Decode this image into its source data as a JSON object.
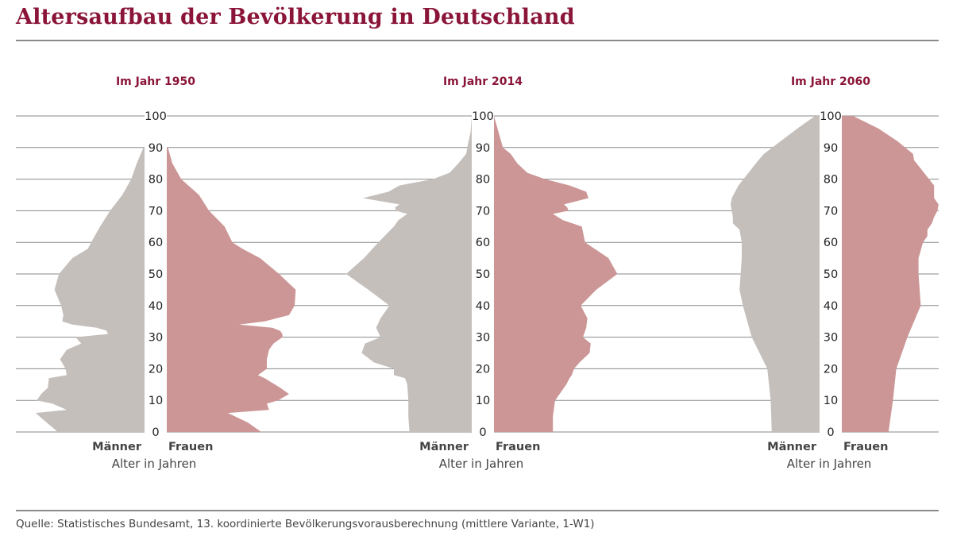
{
  "title": "Altersaufbau der Bevölkerung in Deutschland",
  "source": "Quelle: Statistisches Bundesamt, 13. koordinierte Bevölkerungsvorausberechnung (mittlere Variante, 1-W1)",
  "colors": {
    "male": "#c5bfbc",
    "female": "#cc9696",
    "accent": "#8a1538",
    "grid": "#8a8a8a"
  },
  "chart_data": [
    {
      "type": "area",
      "title": "Im Jahr 1950",
      "xlabel": "Alter in Jahren",
      "yticks": [
        "0",
        "10",
        "20",
        "30",
        "40",
        "50",
        "60",
        "70",
        "80",
        "90",
        "100"
      ],
      "ylim": [
        0,
        100
      ],
      "series_labels": [
        "Männer",
        "Frauen"
      ],
      "age": [
        0,
        3,
        6,
        7,
        9,
        10,
        12,
        14,
        17,
        18,
        20,
        23,
        26,
        28,
        30,
        31,
        32,
        33,
        34,
        35,
        37,
        40,
        45,
        50,
        55,
        58,
        60,
        65,
        70,
        75,
        80,
        85,
        90
      ],
      "men": [
        0.78,
        0.88,
        0.98,
        0.7,
        0.83,
        0.97,
        0.93,
        0.87,
        0.86,
        0.7,
        0.71,
        0.76,
        0.7,
        0.57,
        0.62,
        0.33,
        0.34,
        0.43,
        0.65,
        0.74,
        0.73,
        0.75,
        0.81,
        0.77,
        0.65,
        0.51,
        0.48,
        0.4,
        0.31,
        0.2,
        0.12,
        0.07,
        0.01
      ],
      "women": [
        0.85,
        0.73,
        0.55,
        0.92,
        0.9,
        1.0,
        1.1,
        1.02,
        0.88,
        0.82,
        0.9,
        0.9,
        0.92,
        0.96,
        1.04,
        1.04,
        1.02,
        0.95,
        0.65,
        0.88,
        1.1,
        1.15,
        1.16,
        1.01,
        0.84,
        0.68,
        0.59,
        0.52,
        0.38,
        0.29,
        0.13,
        0.05,
        0.01
      ]
    },
    {
      "type": "area",
      "title": "Im Jahr 2014",
      "xlabel": "Alter in Jahren",
      "yticks": [
        "0",
        "10",
        "20",
        "30",
        "40",
        "50",
        "60",
        "70",
        "80",
        "90",
        "100"
      ],
      "ylim": [
        0,
        100
      ],
      "series_labels": [
        "Männer",
        "Frauen"
      ],
      "age": [
        0,
        5,
        10,
        15,
        17,
        18,
        20,
        22,
        25,
        28,
        30,
        33,
        36,
        40,
        45,
        50,
        55,
        60,
        65,
        67,
        69,
        70,
        71,
        72,
        74,
        76,
        78,
        80,
        82,
        85,
        88,
        90,
        95,
        100
      ],
      "men": [
        0.56,
        0.57,
        0.57,
        0.58,
        0.6,
        0.7,
        0.7,
        0.88,
        0.99,
        0.96,
        0.82,
        0.86,
        0.82,
        0.74,
        0.93,
        1.13,
        0.97,
        0.84,
        0.7,
        0.66,
        0.58,
        0.68,
        0.69,
        0.65,
        0.98,
        0.75,
        0.65,
        0.35,
        0.2,
        0.12,
        0.05,
        0.04,
        0.01,
        0.0
      ],
      "women": [
        0.53,
        0.53,
        0.55,
        0.65,
        0.68,
        0.7,
        0.72,
        0.77,
        0.86,
        0.87,
        0.8,
        0.83,
        0.84,
        0.78,
        0.92,
        1.11,
        1.03,
        0.82,
        0.79,
        0.62,
        0.53,
        0.67,
        0.66,
        0.63,
        0.85,
        0.83,
        0.68,
        0.46,
        0.3,
        0.21,
        0.15,
        0.08,
        0.04,
        0.0
      ]
    },
    {
      "type": "area",
      "title": "Im Jahr 2060",
      "xlabel": "Alter in Jahren",
      "yticks": [
        "0",
        "10",
        "20",
        "30",
        "40",
        "50",
        "60",
        "70",
        "80",
        "90",
        "100"
      ],
      "ylim": [
        0,
        100
      ],
      "series_labels": [
        "Männer",
        "Frauen"
      ],
      "age": [
        0,
        10,
        20,
        30,
        40,
        45,
        50,
        55,
        60,
        62,
        64,
        66,
        68,
        70,
        72,
        74,
        78,
        82,
        86,
        88,
        92,
        96,
        100
      ],
      "men": [
        0.43,
        0.44,
        0.47,
        0.61,
        0.69,
        0.72,
        0.71,
        0.7,
        0.7,
        0.71,
        0.72,
        0.78,
        0.78,
        0.79,
        0.8,
        0.79,
        0.73,
        0.64,
        0.55,
        0.5,
        0.35,
        0.2,
        0.04
      ],
      "women": [
        0.42,
        0.46,
        0.49,
        0.59,
        0.71,
        0.7,
        0.69,
        0.69,
        0.73,
        0.77,
        0.77,
        0.81,
        0.83,
        0.86,
        0.87,
        0.83,
        0.83,
        0.74,
        0.65,
        0.64,
        0.5,
        0.33,
        0.1
      ]
    }
  ]
}
